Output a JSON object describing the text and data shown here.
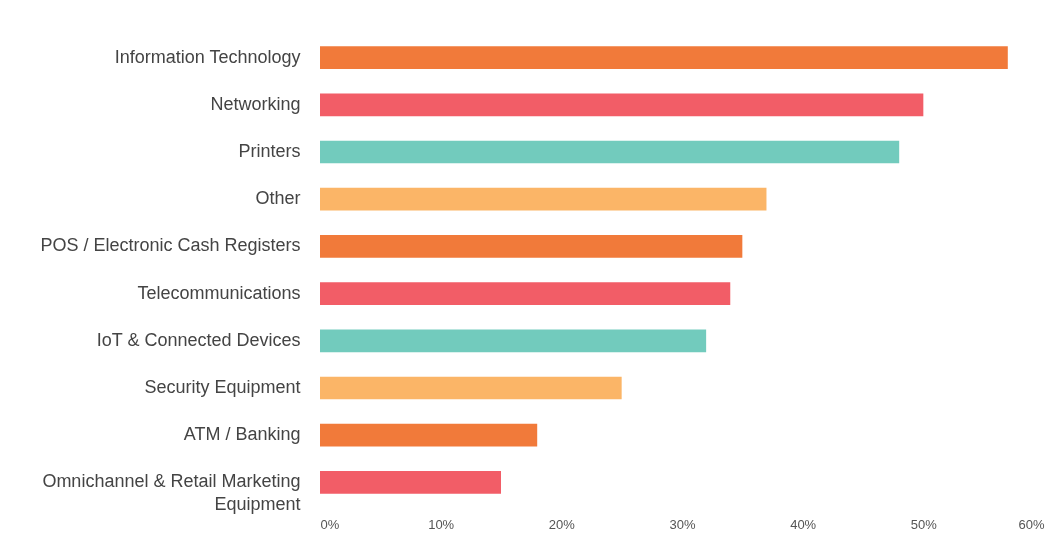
{
  "chart_data": {
    "type": "bar",
    "orientation": "horizontal",
    "categories": [
      "Information Technology",
      "Networking",
      "Printers",
      "Other",
      "POS / Electronic Cash Registers",
      "Telecommunications",
      "IoT & Connected Devices",
      "Security Equipment",
      "ATM / Banking",
      "Omnichannel & Retail Marketing Equipment"
    ],
    "values": [
      57,
      50,
      48,
      37,
      35,
      34,
      32,
      25,
      18,
      15
    ],
    "colors": [
      "#f17a3a",
      "#f25d67",
      "#72cbbd",
      "#fbb567",
      "#f17a3a",
      "#f25d67",
      "#72cbbd",
      "#fbb567",
      "#f17a3a",
      "#f25d67"
    ],
    "xlim": [
      0,
      60
    ],
    "xticks": [
      {
        "value": 0,
        "label": "0%"
      },
      {
        "value": 10,
        "label": "10%"
      },
      {
        "value": 20,
        "label": "20%"
      },
      {
        "value": 30,
        "label": "30%"
      },
      {
        "value": 40,
        "label": "40%"
      },
      {
        "value": 50,
        "label": "50%"
      },
      {
        "value": 60,
        "label": "60%"
      }
    ],
    "grid": false
  }
}
